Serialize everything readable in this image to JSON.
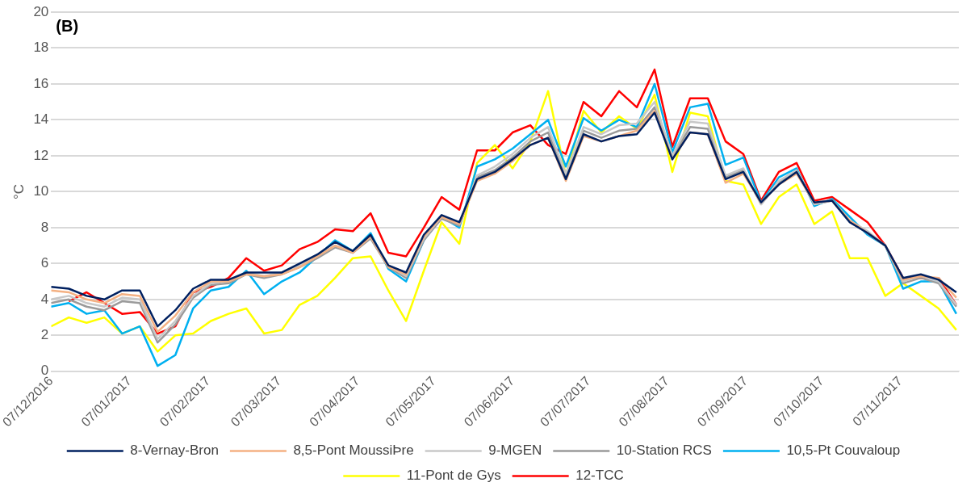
{
  "chart_data": {
    "type": "line",
    "ylabel": "°C",
    "annotations": [
      "(B)"
    ],
    "x": [
      "2016-12-07",
      "2016-12-14",
      "2016-12-21",
      "2016-12-28",
      "2017-01-04",
      "2017-01-11",
      "2017-01-18",
      "2017-01-25",
      "2017-02-01",
      "2017-02-08",
      "2017-02-15",
      "2017-02-22",
      "2017-03-01",
      "2017-03-08",
      "2017-03-15",
      "2017-03-22",
      "2017-03-29",
      "2017-04-05",
      "2017-04-12",
      "2017-04-19",
      "2017-04-26",
      "2017-05-03",
      "2017-05-10",
      "2017-05-17",
      "2017-05-24",
      "2017-05-31",
      "2017-06-07",
      "2017-06-14",
      "2017-06-21",
      "2017-06-28",
      "2017-07-05",
      "2017-07-12",
      "2017-07-19",
      "2017-07-26",
      "2017-08-02",
      "2017-08-09",
      "2017-08-16",
      "2017-08-23",
      "2017-08-30",
      "2017-09-06",
      "2017-09-13",
      "2017-09-20",
      "2017-09-27",
      "2017-10-04",
      "2017-10-11",
      "2017-10-18",
      "2017-10-25",
      "2017-11-01",
      "2017-11-08",
      "2017-11-15",
      "2017-11-22",
      "2017-11-29"
    ],
    "series": [
      {
        "name": "8-Vernay-Bron",
        "color": "#002060",
        "values": [
          4.7,
          4.6,
          4.2,
          4.0,
          4.5,
          4.5,
          2.5,
          3.4,
          4.6,
          5.1,
          5.1,
          5.5,
          5.5,
          5.5,
          6.0,
          6.5,
          7.2,
          6.7,
          7.6,
          5.9,
          5.5,
          7.6,
          8.7,
          8.3,
          10.7,
          11.1,
          11.8,
          12.6,
          13.0,
          10.7,
          13.2,
          12.8,
          13.1,
          13.2,
          14.4,
          11.8,
          13.3,
          13.2,
          10.7,
          11.1,
          9.4,
          10.4,
          11.1,
          9.4,
          9.5,
          8.3,
          7.7,
          7.0,
          5.2,
          5.4,
          5.1,
          4.4
        ]
      },
      {
        "name": "8,5-Pont MoussiÞre",
        "color": "#f4b183",
        "values": [
          4.5,
          4.4,
          4.0,
          3.8,
          4.3,
          4.2,
          2.2,
          3.1,
          4.4,
          5.0,
          5.0,
          5.4,
          5.3,
          5.4,
          5.8,
          6.4,
          7.0,
          6.6,
          7.5,
          5.8,
          5.4,
          7.5,
          8.6,
          8.2,
          10.6,
          11.0,
          11.7,
          12.6,
          13.0,
          10.6,
          13.1,
          12.8,
          13.1,
          13.4,
          14.5,
          11.8,
          13.3,
          13.2,
          10.5,
          11.0,
          9.4,
          10.4,
          11.0,
          9.4,
          9.5,
          8.4,
          7.7,
          7.0,
          5.1,
          5.3,
          5.2,
          4.1
        ]
      },
      {
        "name": "9-MGEN",
        "color": "#c8c8c8",
        "values": [
          4.0,
          4.2,
          3.8,
          3.6,
          4.1,
          4.0,
          1.8,
          2.8,
          4.2,
          4.9,
          5.0,
          5.5,
          5.3,
          5.5,
          5.9,
          6.4,
          7.0,
          6.7,
          7.5,
          5.9,
          5.3,
          7.4,
          8.6,
          8.2,
          10.9,
          11.4,
          12.1,
          13.0,
          13.6,
          11.0,
          13.6,
          13.2,
          13.7,
          13.8,
          15.0,
          12.0,
          13.9,
          13.8,
          10.9,
          11.3,
          9.3,
          10.6,
          11.2,
          9.3,
          9.5,
          8.4,
          7.8,
          7.0,
          5.0,
          5.3,
          5.0,
          3.7
        ]
      },
      {
        "name": "10-Station RCS",
        "color": "#9a9a9a",
        "values": [
          3.8,
          4.0,
          3.6,
          3.4,
          3.9,
          3.8,
          1.6,
          2.6,
          4.1,
          4.8,
          4.9,
          5.4,
          5.2,
          5.4,
          5.8,
          6.3,
          6.9,
          6.6,
          7.4,
          5.8,
          5.2,
          7.3,
          8.5,
          8.1,
          10.8,
          11.2,
          11.9,
          12.8,
          13.3,
          10.8,
          13.4,
          13.0,
          13.4,
          13.5,
          14.7,
          11.9,
          13.6,
          13.5,
          10.8,
          11.2,
          9.3,
          10.5,
          11.1,
          9.3,
          9.5,
          8.3,
          7.7,
          7.0,
          4.9,
          5.2,
          4.9,
          3.6
        ]
      },
      {
        "name": "10,5-Pt Couvaloup",
        "color": "#00b0f0",
        "values": [
          3.6,
          3.8,
          3.2,
          3.4,
          2.1,
          2.5,
          0.3,
          0.9,
          3.5,
          4.5,
          4.7,
          5.6,
          4.3,
          5.0,
          5.5,
          6.4,
          7.3,
          6.7,
          7.7,
          5.7,
          5.0,
          7.3,
          8.6,
          8.0,
          11.4,
          11.8,
          12.4,
          13.2,
          14.0,
          11.4,
          14.1,
          13.4,
          14.0,
          13.6,
          16.0,
          12.2,
          14.7,
          14.9,
          11.5,
          11.9,
          9.4,
          10.8,
          11.3,
          9.2,
          9.6,
          8.6,
          7.6,
          7.0,
          4.6,
          5.0,
          5.0,
          3.2
        ]
      },
      {
        "name": "11-Pont de Gys",
        "color": "#ffff00",
        "values": [
          2.5,
          3.0,
          2.7,
          3.0,
          2.1,
          2.5,
          1.1,
          2.0,
          2.1,
          2.8,
          3.2,
          3.5,
          2.1,
          2.3,
          3.7,
          4.2,
          5.2,
          6.3,
          6.4,
          4.5,
          2.8,
          5.6,
          8.3,
          7.1,
          11.6,
          12.6,
          11.3,
          12.8,
          15.6,
          10.9,
          14.5,
          13.3,
          14.2,
          13.5,
          15.4,
          11.1,
          14.4,
          14.2,
          10.6,
          10.4,
          8.2,
          9.7,
          10.4,
          8.2,
          8.9,
          6.3,
          6.3,
          4.2,
          4.9,
          4.2,
          3.5,
          2.3
        ]
      },
      {
        "name": "12-TCC",
        "color": "#ff0000",
        "values": [
          null,
          3.9,
          4.4,
          3.8,
          3.2,
          3.3,
          2.1,
          2.5,
          4.4,
          4.7,
          5.2,
          6.3,
          5.6,
          5.9,
          6.8,
          7.2,
          7.9,
          7.8,
          8.8,
          6.6,
          6.4,
          8.0,
          9.7,
          9.0,
          12.3,
          12.3,
          13.3,
          13.7,
          12.6,
          12.1,
          15.0,
          14.2,
          15.6,
          14.7,
          16.8,
          12.5,
          15.2,
          15.2,
          12.8,
          12.1,
          9.5,
          11.1,
          11.6,
          9.5,
          9.7,
          9.0,
          8.3,
          7.0,
          5.2,
          5.2,
          5.2,
          3.7
        ]
      }
    ],
    "xlim": [
      "2016-12-07",
      "2017-11-30"
    ],
    "xticks": [
      {
        "value": "2016-12-07",
        "label": "07/12/2016"
      },
      {
        "value": "2017-01-07",
        "label": "07/01/2017"
      },
      {
        "value": "2017-02-07",
        "label": "07/02/2017"
      },
      {
        "value": "2017-03-07",
        "label": "07/03/2017"
      },
      {
        "value": "2017-04-07",
        "label": "07/04/2017"
      },
      {
        "value": "2017-05-07",
        "label": "07/05/2017"
      },
      {
        "value": "2017-06-07",
        "label": "07/06/2017"
      },
      {
        "value": "2017-07-07",
        "label": "07/07/2017"
      },
      {
        "value": "2017-08-07",
        "label": "07/08/2017"
      },
      {
        "value": "2017-09-07",
        "label": "07/09/2017"
      },
      {
        "value": "2017-10-07",
        "label": "07/10/2017"
      },
      {
        "value": "2017-11-07",
        "label": "07/11/2017"
      }
    ],
    "ylim": [
      0,
      20
    ],
    "yticks": [
      0,
      2,
      4,
      6,
      8,
      10,
      12,
      14,
      16,
      18,
      20
    ],
    "grid": "y",
    "legend": "bottom",
    "marker": "none",
    "line_style": "solid"
  }
}
